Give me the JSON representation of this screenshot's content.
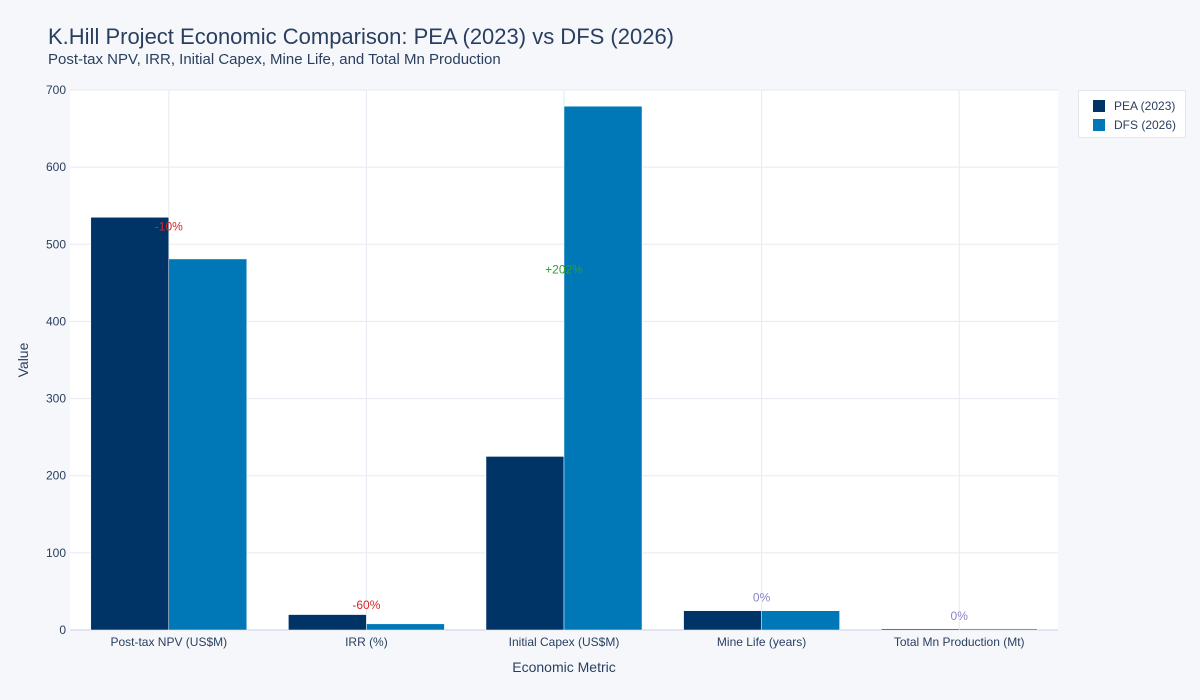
{
  "title": "K.Hill Project Economic Comparison: PEA (2023) vs DFS (2026)",
  "subtitle": "Post-tax NPV, IRR, Initial Capex, Mine Life, and Total Mn Production",
  "colors": {
    "pea": "#003366",
    "dfs": "#0077b6",
    "negative": "#d62728",
    "positive": "#2ca02c",
    "neutral": "#8a85c7",
    "plot_bg": "#ffffff",
    "grid": "#e6eaf0"
  },
  "chart_data": {
    "type": "bar",
    "title": "K.Hill Project Economic Comparison: PEA (2023) vs DFS (2026)",
    "subtitle": "Post-tax NPV, IRR, Initial Capex, Mine Life, and Total Mn Production",
    "xlabel": "Economic Metric",
    "ylabel": "Value",
    "ylim": [
      0,
      700
    ],
    "yticks": [
      0,
      100,
      200,
      300,
      400,
      500,
      600,
      700
    ],
    "grid": true,
    "legend_position": "top-right",
    "categories": [
      "Post-tax NPV (US$M)",
      "IRR (%)",
      "Initial Capex (US$M)",
      "Mine Life (years)",
      "Total Mn Production (Mt)"
    ],
    "series": [
      {
        "name": "PEA (2023)",
        "color": "#003366",
        "values": [
          535,
          20,
          225,
          25,
          1.5
        ]
      },
      {
        "name": "DFS (2026)",
        "color": "#0077b6",
        "values": [
          481,
          8,
          679,
          25,
          1.5
        ]
      }
    ],
    "annotations": [
      {
        "category": "Post-tax NPV (US$M)",
        "text": "-10%",
        "sentiment": "negative",
        "y": 518
      },
      {
        "category": "IRR (%)",
        "text": "-60%",
        "sentiment": "negative",
        "y": 27
      },
      {
        "category": "Initial Capex (US$M)",
        "text": "+202%",
        "sentiment": "positive",
        "y": 462
      },
      {
        "category": "Mine Life (years)",
        "text": "0%",
        "sentiment": "neutral",
        "y": 37
      },
      {
        "category": "Total Mn Production (Mt)",
        "text": "0%",
        "sentiment": "neutral",
        "y": 13
      }
    ]
  }
}
